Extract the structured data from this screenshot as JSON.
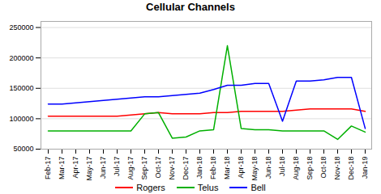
{
  "chart_data": {
    "type": "line",
    "title": "Cellular Channels",
    "categories": [
      "Feb-17",
      "Mar-17",
      "Apr-17",
      "May-17",
      "Jun-17",
      "Jul-17",
      "Aug-17",
      "Sep-17",
      "Oct-17",
      "Nov-17",
      "Dec-17",
      "Jan-18",
      "Feb-18",
      "Mar-18",
      "Apr-18",
      "May-18",
      "Jun-18",
      "Jul-18",
      "Aug-18",
      "Sep-18",
      "Oct-18",
      "Nov-18",
      "Dec-18",
      "Jan-19"
    ],
    "series": [
      {
        "name": "Rogers",
        "color": "#FF0000",
        "values": [
          104000,
          104000,
          104000,
          104000,
          104000,
          104000,
          106000,
          108000,
          110000,
          108000,
          108000,
          108000,
          110000,
          110000,
          112000,
          112000,
          112000,
          112000,
          114000,
          116000,
          116000,
          116000,
          116000,
          112000
        ]
      },
      {
        "name": "Telus",
        "color": "#00B000",
        "values": [
          80000,
          80000,
          80000,
          80000,
          80000,
          80000,
          80000,
          108000,
          110000,
          68000,
          70000,
          80000,
          82000,
          220000,
          84000,
          82000,
          82000,
          80000,
          80000,
          80000,
          80000,
          66000,
          88000,
          78000
        ]
      },
      {
        "name": "Bell",
        "color": "#0000FF",
        "values": [
          124000,
          124000,
          126000,
          128000,
          130000,
          132000,
          134000,
          136000,
          136000,
          138000,
          140000,
          142000,
          148000,
          155000,
          155000,
          158000,
          158000,
          96000,
          162000,
          162000,
          164000,
          168000,
          168000,
          84000
        ]
      }
    ],
    "ylim": [
      50000,
      260000
    ],
    "yticks": [
      50000,
      100000,
      150000,
      200000,
      250000
    ],
    "grid": true,
    "legend": "bottom"
  }
}
